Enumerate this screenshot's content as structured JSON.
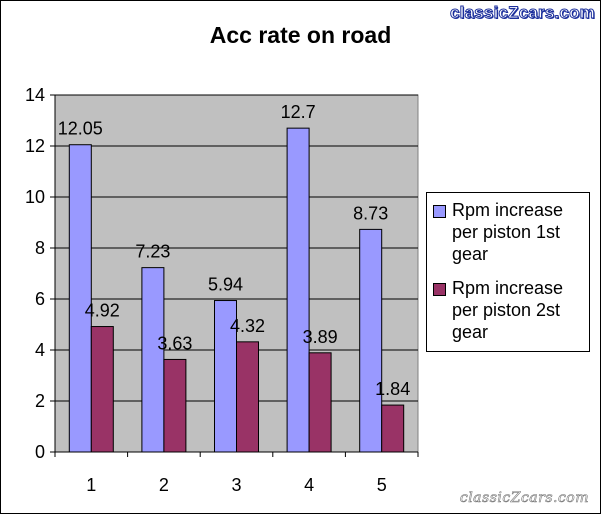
{
  "watermark": {
    "top": "classicZcars.com",
    "bottom": "classicZcars.com"
  },
  "chart_data": {
    "type": "bar",
    "title": "Acc rate on road",
    "xlabel": "",
    "ylabel": "",
    "categories": [
      "1",
      "2",
      "3",
      "4",
      "5"
    ],
    "ylim": [
      0,
      14
    ],
    "yticks": [
      0,
      2,
      4,
      6,
      8,
      10,
      12,
      14
    ],
    "grid": true,
    "legend_position": "right",
    "series": [
      {
        "name": "Rpm increase per piston 1st gear",
        "values": [
          12.05,
          7.23,
          5.94,
          12.7,
          8.73
        ],
        "color": "#9999ff"
      },
      {
        "name": "Rpm increase per piston 2st gear",
        "values": [
          4.92,
          3.63,
          4.32,
          3.89,
          1.84
        ],
        "color": "#993366"
      }
    ],
    "plot_background": "#c0c0c0"
  }
}
